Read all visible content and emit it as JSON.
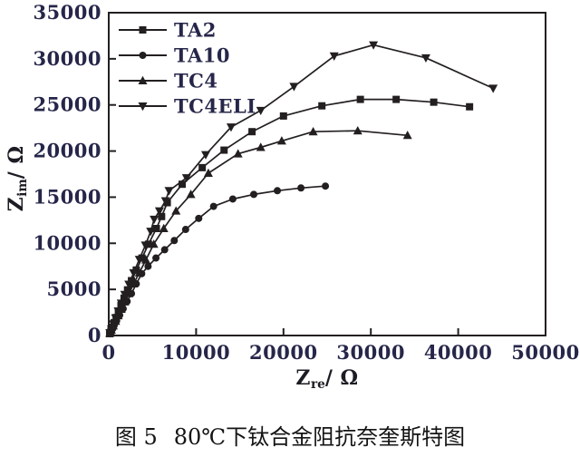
{
  "figure": {
    "caption_label": "图 5",
    "caption_text": "80℃下钛合金阻抗奈奎斯特图"
  },
  "axes": {
    "x_title_base": "Z",
    "x_title_sub": "re",
    "x_title_unit": "/ Ω",
    "y_title_base": "Z",
    "y_title_sub": "im",
    "y_title_unit": "/ Ω"
  },
  "colors": {
    "curve": "#231f20",
    "axis": "#231f20",
    "tick_text": "#26264a",
    "legend_text": "#26264a",
    "background": "#ffffff"
  },
  "chart_data": {
    "type": "line",
    "subtype": "nyquist-impedance-scatter",
    "title": "",
    "xlabel": "Z_re / Ω",
    "ylabel": "Z_im / Ω",
    "xlim": [
      0,
      50000
    ],
    "ylim": [
      0,
      35000
    ],
    "xticks": [
      0,
      10000,
      20000,
      30000,
      40000,
      50000
    ],
    "yticks": [
      0,
      5000,
      10000,
      15000,
      20000,
      25000,
      30000,
      35000
    ],
    "grid": false,
    "legend_position": "upper-left-inside",
    "series": [
      {
        "name": "TA2",
        "marker": "square",
        "points": [
          [
            100,
            200
          ],
          [
            250,
            500
          ],
          [
            420,
            900
          ],
          [
            620,
            1400
          ],
          [
            850,
            1950
          ],
          [
            1100,
            2550
          ],
          [
            1400,
            3250
          ],
          [
            1750,
            4050
          ],
          [
            2150,
            4950
          ],
          [
            2600,
            5950
          ],
          [
            3150,
            7100
          ],
          [
            3800,
            8400
          ],
          [
            4550,
            9900
          ],
          [
            5450,
            11600
          ],
          [
            6050,
            12900
          ],
          [
            6700,
            14400
          ],
          [
            8400,
            16400
          ],
          [
            10700,
            18200
          ],
          [
            13200,
            20100
          ],
          [
            16400,
            22100
          ],
          [
            20000,
            23800
          ],
          [
            24400,
            24900
          ],
          [
            28800,
            25600
          ],
          [
            32900,
            25600
          ],
          [
            37200,
            25300
          ],
          [
            41300,
            24800
          ]
        ]
      },
      {
        "name": "TA10",
        "marker": "circle",
        "points": [
          [
            150,
            250
          ],
          [
            350,
            600
          ],
          [
            600,
            1050
          ],
          [
            900,
            1600
          ],
          [
            1250,
            2200
          ],
          [
            1650,
            2900
          ],
          [
            2100,
            3700
          ],
          [
            2600,
            4550
          ],
          [
            3150,
            5600
          ],
          [
            3770,
            6700
          ],
          [
            4500,
            7500
          ],
          [
            5400,
            8400
          ],
          [
            6400,
            9300
          ],
          [
            7500,
            10300
          ],
          [
            8800,
            11500
          ],
          [
            10300,
            12700
          ],
          [
            12000,
            14000
          ],
          [
            14200,
            14800
          ],
          [
            16600,
            15300
          ],
          [
            19300,
            15700
          ],
          [
            22000,
            16000
          ],
          [
            24800,
            16200
          ]
        ]
      },
      {
        "name": "TC4",
        "marker": "triangle-up",
        "points": [
          [
            120,
            250
          ],
          [
            300,
            600
          ],
          [
            520,
            1050
          ],
          [
            780,
            1550
          ],
          [
            1080,
            2150
          ],
          [
            1430,
            2850
          ],
          [
            1830,
            3650
          ],
          [
            2300,
            4550
          ],
          [
            2850,
            5600
          ],
          [
            3500,
            6800
          ],
          [
            4250,
            8200
          ],
          [
            5150,
            9900
          ],
          [
            6300,
            11600
          ],
          [
            7700,
            13500
          ],
          [
            9400,
            15300
          ],
          [
            11400,
            17600
          ],
          [
            14800,
            19700
          ],
          [
            17400,
            20400
          ],
          [
            19800,
            21100
          ],
          [
            23400,
            22100
          ],
          [
            28500,
            22200
          ],
          [
            34200,
            21700
          ]
        ]
      },
      {
        "name": "TC4ELI",
        "marker": "triangle-down",
        "points": [
          [
            130,
            300
          ],
          [
            300,
            700
          ],
          [
            520,
            1250
          ],
          [
            780,
            1900
          ],
          [
            1080,
            2650
          ],
          [
            1430,
            3500
          ],
          [
            1830,
            4450
          ],
          [
            2300,
            5550
          ],
          [
            2850,
            6800
          ],
          [
            3500,
            8250
          ],
          [
            4200,
            9800
          ],
          [
            4800,
            11300
          ],
          [
            5200,
            12600
          ],
          [
            5800,
            13500
          ],
          [
            6500,
            14600
          ],
          [
            6900,
            15700
          ],
          [
            8900,
            17100
          ],
          [
            11100,
            19600
          ],
          [
            14000,
            22600
          ],
          [
            17400,
            24400
          ],
          [
            21200,
            27000
          ],
          [
            25800,
            30300
          ],
          [
            30300,
            31500
          ],
          [
            36300,
            30100
          ],
          [
            44000,
            26800
          ]
        ]
      }
    ]
  }
}
